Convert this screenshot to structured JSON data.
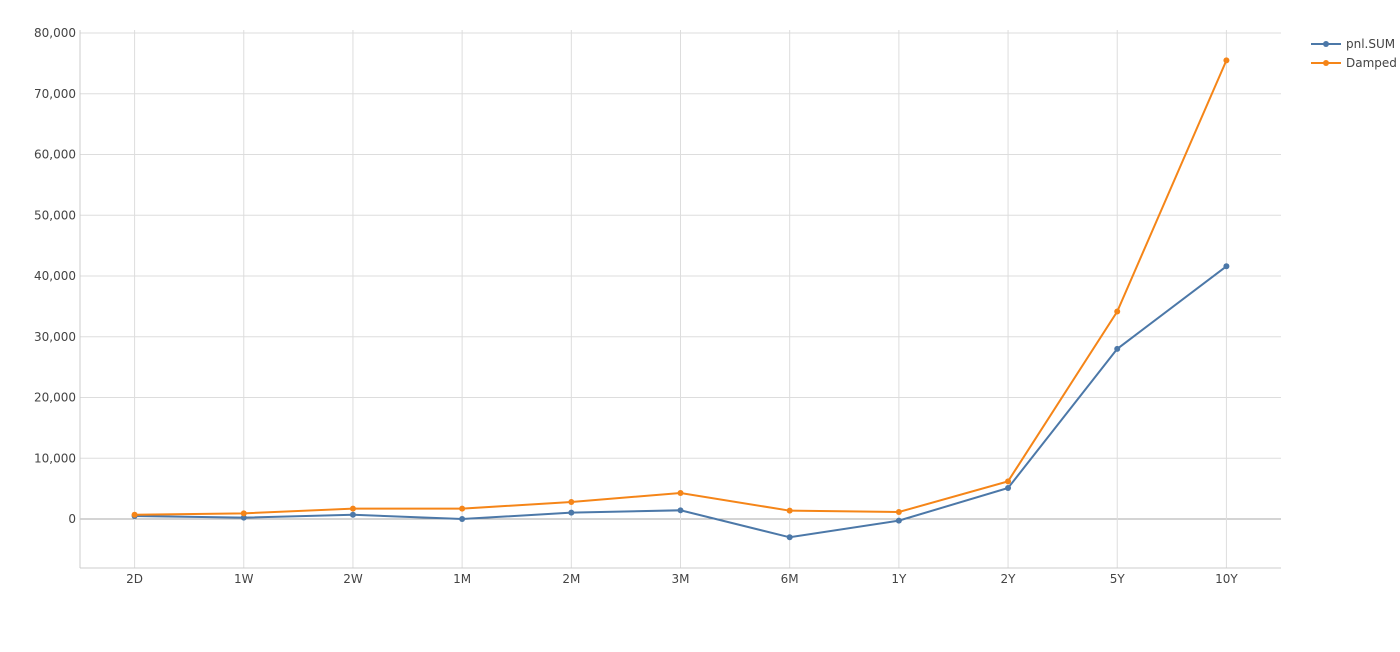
{
  "chart_data": {
    "type": "line",
    "categories": [
      "2D",
      "1W",
      "2W",
      "1M",
      "2M",
      "3M",
      "6M",
      "1Y",
      "2Y",
      "5Y",
      "10Y"
    ],
    "series": [
      {
        "name": "pnl.SUM",
        "color": "#4c78a8",
        "values": [
          500,
          220,
          700,
          0,
          1040,
          1430,
          -3010,
          -270,
          5100,
          28000,
          41600
        ]
      },
      {
        "name": "Damped",
        "color": "#f58518",
        "values": [
          700,
          930,
          1700,
          1700,
          2800,
          4280,
          1370,
          1150,
          6200,
          34150,
          75500
        ]
      }
    ],
    "ylim": [
      -8000,
      80000
    ],
    "yticks": [
      0,
      10000,
      20000,
      30000,
      40000,
      50000,
      60000,
      70000,
      80000
    ],
    "ytick_labels": [
      "0",
      "10,000",
      "20,000",
      "30,000",
      "40,000",
      "50,000",
      "60,000",
      "70,000",
      "80,000"
    ],
    "grid": true,
    "legend_position": "top-right"
  }
}
